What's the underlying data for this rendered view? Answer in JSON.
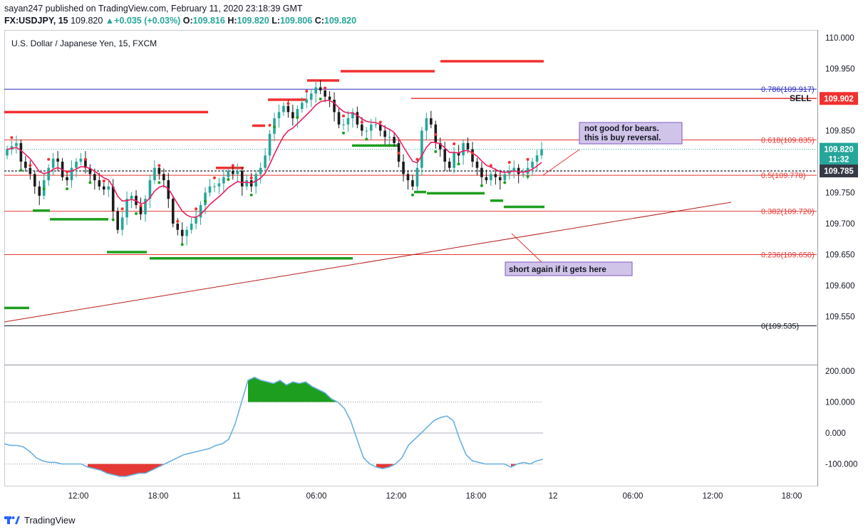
{
  "header": {
    "published_line": "sayan247 published on TradingView.com, February 11, 2020 23:18:39 GMT",
    "symbol_line": "FX:USDJPY, 15",
    "last": "109.820",
    "change_arrow": "▲",
    "change": "+0.035 (+0.03%)",
    "o_label": "O:",
    "o": "109.816",
    "h_label": "H:",
    "h": "109.820",
    "l_label": "L:",
    "l": "109.806",
    "c_label": "C:",
    "c": "109.820"
  },
  "chart_title": "U.S. Dollar / Japanese Yen, 15, FXCM",
  "footer": {
    "brand": "TradingView"
  },
  "colors": {
    "up": "#26a69a",
    "down": "#1b1b1b",
    "ema": "#e91e63",
    "fib": "#e53935",
    "support": "#1e9e1e",
    "resistance": "#f23030",
    "osc": "#6ab0e0",
    "sell": "#131722"
  },
  "chart_data": [
    {
      "type": "candlestick",
      "title": "U.S. Dollar / Japanese Yen, 15, FXCM",
      "ylim": [
        109.5,
        110.0
      ],
      "price_ticks": [
        "110.000",
        "109.950",
        "109.900",
        "109.850",
        "109.800",
        "109.750",
        "109.700",
        "109.650",
        "109.600",
        "109.550"
      ],
      "time_ticks": [
        "12:00",
        "18:00",
        "11",
        "06:00",
        "12:00",
        "18:00",
        "12",
        "06:00",
        "12:00",
        "18:00"
      ],
      "fib_levels": [
        {
          "label": "0.786(109.917)",
          "value": 109.917
        },
        {
          "label": "0.618(109.835)",
          "value": 109.835
        },
        {
          "label": "0.5(109.778)",
          "value": 109.778
        },
        {
          "label": "0.382(109.720)",
          "value": 109.72
        },
        {
          "label": "0.236(109.650)",
          "value": 109.65
        },
        {
          "label": "0(109.535)",
          "value": 109.535
        }
      ],
      "price_badges": [
        {
          "text": "109.902",
          "value": 109.902,
          "color": "#f23030"
        },
        {
          "text": "109.820",
          "value": 109.82,
          "color": "#26a69a"
        },
        {
          "text": "11:32",
          "value": 109.804,
          "color": "#26a69a"
        },
        {
          "text": "109.785",
          "value": 109.785,
          "color": "#363a45"
        }
      ],
      "sell_label": "SELL",
      "annotations": [
        {
          "text": "not good for bears.\nthis is buy reversal."
        },
        {
          "text": "short again if it gets here"
        }
      ],
      "close": [
        109.82,
        109.825,
        109.83,
        109.8,
        109.79,
        109.78,
        109.76,
        109.745,
        109.77,
        109.79,
        109.805,
        109.8,
        109.775,
        109.77,
        109.79,
        109.8,
        109.805,
        109.79,
        109.78,
        109.77,
        109.76,
        109.755,
        109.76,
        109.72,
        109.69,
        109.71,
        109.74,
        109.745,
        109.73,
        109.715,
        109.74,
        109.77,
        109.79,
        109.78,
        109.77,
        109.74,
        109.7,
        109.69,
        109.68,
        109.69,
        109.7,
        109.71,
        109.73,
        109.75,
        109.76,
        109.76,
        109.765,
        109.775,
        109.785,
        109.78,
        109.785,
        109.76,
        109.77,
        109.76,
        109.78,
        109.79,
        109.81,
        109.845,
        109.87,
        109.88,
        109.89,
        109.88,
        109.87,
        109.885,
        109.895,
        109.9,
        109.91,
        109.92,
        109.915,
        109.905,
        109.9,
        109.88,
        109.86,
        109.86,
        109.87,
        109.88,
        109.86,
        109.85,
        109.85,
        109.86,
        109.86,
        109.85,
        109.84,
        109.84,
        109.83,
        109.8,
        109.78,
        109.77,
        109.76,
        109.79,
        109.85,
        109.87,
        109.86,
        109.83,
        109.82,
        109.8,
        109.79,
        109.815,
        109.81,
        109.83,
        109.82,
        109.8,
        109.79,
        109.775,
        109.77,
        109.78,
        109.775,
        109.77,
        109.78,
        109.785,
        109.79,
        109.78,
        109.78,
        109.79,
        109.8,
        109.81,
        109.82
      ]
    },
    {
      "type": "line",
      "name": "oscillator",
      "ylim": [
        -200,
        200
      ],
      "ticks": [
        "200.000",
        "100.000",
        "0.000",
        "-100.000"
      ],
      "values": [
        -35,
        -40,
        -40,
        -45,
        -60,
        -80,
        -90,
        -95,
        -95,
        -100,
        -100,
        -100,
        -100,
        -110,
        -115,
        -120,
        -130,
        -135,
        -140,
        -140,
        -135,
        -130,
        -130,
        -120,
        -110,
        -100,
        -90,
        -80,
        -70,
        -65,
        -60,
        -55,
        -50,
        -40,
        -35,
        -20,
        30,
        100,
        170,
        180,
        170,
        165,
        160,
        170,
        155,
        165,
        160,
        165,
        150,
        140,
        130,
        110,
        100,
        80,
        40,
        -20,
        -80,
        -100,
        -110,
        -115,
        -110,
        -100,
        -80,
        -40,
        -20,
        0,
        20,
        40,
        50,
        55,
        40,
        -20,
        -70,
        -90,
        -95,
        -100,
        -100,
        -100,
        -100,
        -110,
        -100,
        -95,
        -100,
        -90,
        -85
      ]
    }
  ]
}
